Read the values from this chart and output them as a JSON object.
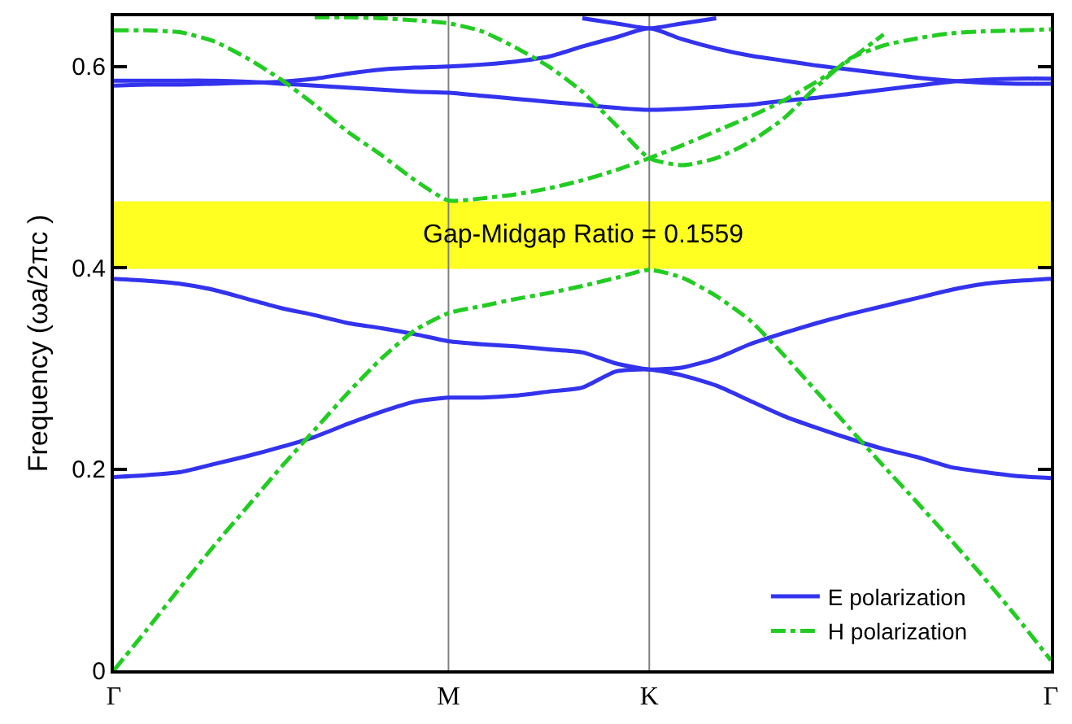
{
  "chart_data": {
    "type": "line",
    "ylabel": "Frequency (ωa/2πc )",
    "categories": [
      "Γ",
      null,
      null,
      null,
      null,
      null,
      null,
      null,
      null,
      null,
      "M",
      null,
      null,
      null,
      null,
      null,
      "K",
      null,
      null,
      null,
      null,
      null,
      null,
      null,
      null,
      null,
      null,
      null,
      "Γ"
    ],
    "ylim": [
      0,
      0.65
    ],
    "yticks": [
      0,
      {
        "value": 0.2,
        "label": "0.2"
      },
      {
        "value": 0.4,
        "label": "0.4"
      },
      {
        "value": 0.6,
        "label": "0.6"
      }
    ],
    "grid": false,
    "legend": "bottom right",
    "marker": "none",
    "series": [
      {
        "name": "E polarization",
        "color": "#3333ee",
        "line_style": "solid",
        "values": [
          0.192,
          0.194,
          0.197,
          0.205,
          0.213,
          0.222,
          0.232,
          0.245,
          0.257,
          0.267,
          0.271,
          0.271,
          0.273,
          0.277,
          0.281,
          0.297,
          0.299,
          0.293,
          0.283,
          0.268,
          0.253,
          0.241,
          0.23,
          0.22,
          0.212,
          0.202,
          0.197,
          0.193,
          0.191
        ]
      },
      {
        "color": "#3333ee",
        "line_style": "solid",
        "values": [
          0.389,
          0.387,
          0.384,
          0.378,
          0.369,
          0.36,
          0.353,
          0.345,
          0.34,
          0.334,
          0.327,
          0.324,
          0.322,
          0.319,
          0.316,
          0.305,
          0.299,
          0.301,
          0.31,
          0.324,
          0.335,
          0.345,
          0.354,
          0.362,
          0.37,
          0.378,
          0.384,
          0.387,
          0.389
        ]
      },
      {
        "color": "#3333ee",
        "line_style": "solid",
        "values": [
          0.586,
          0.586,
          0.586,
          0.586,
          0.585,
          0.583,
          0.581,
          0.579,
          0.577,
          0.575,
          0.574,
          0.571,
          0.568,
          0.565,
          0.562,
          0.559,
          0.557,
          0.558,
          0.56,
          0.562,
          0.566,
          0.569,
          0.573,
          0.577,
          0.581,
          0.585,
          0.587,
          0.588,
          0.588
        ]
      },
      {
        "color": "#3333ee",
        "line_style": "solid",
        "values": [
          0.581,
          0.582,
          0.582,
          0.583,
          0.584,
          0.585,
          0.588,
          0.593,
          0.597,
          0.599,
          0.6,
          0.602,
          0.605,
          0.61,
          0.62,
          0.629,
          0.638,
          0.627,
          0.618,
          0.611,
          0.606,
          0.601,
          0.597,
          0.593,
          0.589,
          0.586,
          0.584,
          0.583,
          0.583
        ]
      },
      {
        "color": "#3333ee",
        "line_style": "solid",
        "values": [
          null,
          null,
          null,
          null,
          null,
          null,
          null,
          null,
          null,
          null,
          null,
          null,
          null,
          null,
          0.648,
          0.643,
          0.638,
          0.643,
          0.648,
          null,
          null,
          null,
          null,
          null,
          null,
          null,
          null,
          null,
          null
        ]
      },
      {
        "name": "H polarization",
        "color": "#22cc22",
        "line_style": "dashdot",
        "values": [
          0,
          0.041,
          0.083,
          0.124,
          0.163,
          0.202,
          0.239,
          0.276,
          0.31,
          0.338,
          0.355,
          0.362,
          0.369,
          0.375,
          0.382,
          0.39,
          0.398,
          0.39,
          0.372,
          0.348,
          0.314,
          0.277,
          0.24,
          0.203,
          0.167,
          0.13,
          0.092,
          0.052,
          0.01
        ]
      },
      {
        "color": "#22cc22",
        "line_style": "dashdot",
        "values": [
          0.636,
          0.636,
          0.634,
          0.625,
          0.608,
          0.587,
          0.562,
          0.535,
          0.512,
          0.487,
          0.467,
          0.469,
          0.473,
          0.479,
          0.487,
          0.497,
          0.509,
          0.522,
          0.536,
          0.55,
          0.566,
          0.585,
          0.607,
          0.632,
          null,
          null,
          null,
          null,
          null
        ]
      },
      {
        "color": "#22cc22",
        "line_style": "dashdot",
        "values": [
          null,
          null,
          null,
          null,
          null,
          null,
          0.649,
          0.649,
          0.648,
          0.646,
          0.643,
          0.635,
          0.619,
          0.6,
          0.575,
          0.542,
          0.509,
          0.502,
          0.509,
          0.525,
          0.548,
          0.58,
          0.608,
          0.621,
          0.628,
          0.633,
          0.635,
          0.636,
          0.637
        ]
      }
    ],
    "ref_lines": [
      {
        "axis": "x",
        "value": "M",
        "color": "#808080"
      },
      {
        "axis": "x",
        "value": "K",
        "color": "#808080"
      }
    ],
    "bands": [
      {
        "axis": "y",
        "from": 0.399,
        "to": 0.466,
        "label": "Gap-Midgap Ratio = 0.1559",
        "color": "#ffff22"
      }
    ]
  }
}
